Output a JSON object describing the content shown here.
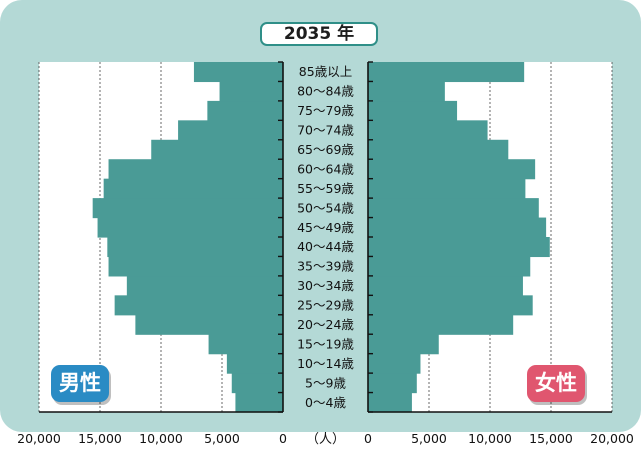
{
  "title": "2035 年",
  "legend": {
    "male": "男性",
    "female": "女性"
  },
  "colors": {
    "bar": "#4a9b96",
    "panel": "#b4d9d6",
    "male_badge": "#2a8bc4",
    "female_badge": "#e0566f"
  },
  "axis": {
    "center_label": "（人）",
    "grid": "dotted"
  },
  "chart_data": {
    "type": "bar",
    "orientation": "horizontal-population-pyramid",
    "title": "2035 年",
    "categories": [
      "0～4歳",
      "5～9歳",
      "10～14歳",
      "15～19歳",
      "20～24歳",
      "25～29歳",
      "30～34歳",
      "35～39歳",
      "40～44歳",
      "45～49歳",
      "50～54歳",
      "55～59歳",
      "60～64歳",
      "65～69歳",
      "70～74歳",
      "75～79歳",
      "80～84歳",
      "85歳以上"
    ],
    "series": [
      {
        "name": "男性",
        "values": [
          3900,
          4200,
          4600,
          6100,
          12100,
          13800,
          12800,
          14300,
          14400,
          15200,
          15600,
          14700,
          14300,
          10800,
          8600,
          6200,
          5200,
          7300
        ]
      },
      {
        "name": "女性",
        "values": [
          3600,
          4000,
          4300,
          5800,
          11900,
          13500,
          12700,
          13300,
          14900,
          14600,
          14000,
          12900,
          13700,
          11500,
          9800,
          7300,
          6300,
          12800
        ]
      }
    ],
    "xlim": [
      0,
      20000
    ],
    "ticks": [
      20000,
      15000,
      10000,
      5000,
      0
    ],
    "tick_labels": [
      "20,000",
      "15,000",
      "10,000",
      "5,000",
      "0"
    ],
    "xlabel": "（人）"
  }
}
